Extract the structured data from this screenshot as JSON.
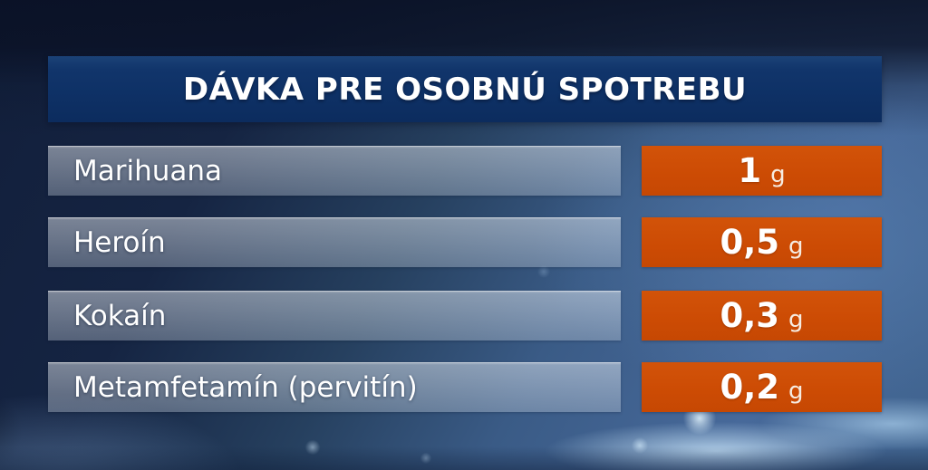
{
  "graphic": {
    "title": "DÁVKA PRE OSOBNÚ SPOTREBU"
  },
  "rows": [
    {
      "name": "Marihuana",
      "amount": "1",
      "unit": "g"
    },
    {
      "name": "Heroín",
      "amount": "0,5",
      "unit": "g"
    },
    {
      "name": "Kokaín",
      "amount": "0,3",
      "unit": "g"
    },
    {
      "name": "Metamfetamín (pervitín)",
      "amount": "0,2",
      "unit": "g"
    }
  ],
  "colors": {
    "header_bg": "#0e3166",
    "badge_bg": "#cc4b04",
    "text": "#ffffff",
    "background_base": "#3a5b86"
  },
  "chart_data": {
    "type": "table",
    "title": "DÁVKA PRE OSOBNÚ SPOTREBU",
    "categories": [
      "Marihuana",
      "Heroín",
      "Kokaín",
      "Metamfetamín (pervitín)"
    ],
    "values": [
      1,
      0.5,
      0.3,
      0.2
    ],
    "value_labels": [
      "1 g",
      "0,5 g",
      "0,3 g",
      "0,2 g"
    ],
    "unit": "g",
    "legend_position": "none",
    "grid": false
  }
}
